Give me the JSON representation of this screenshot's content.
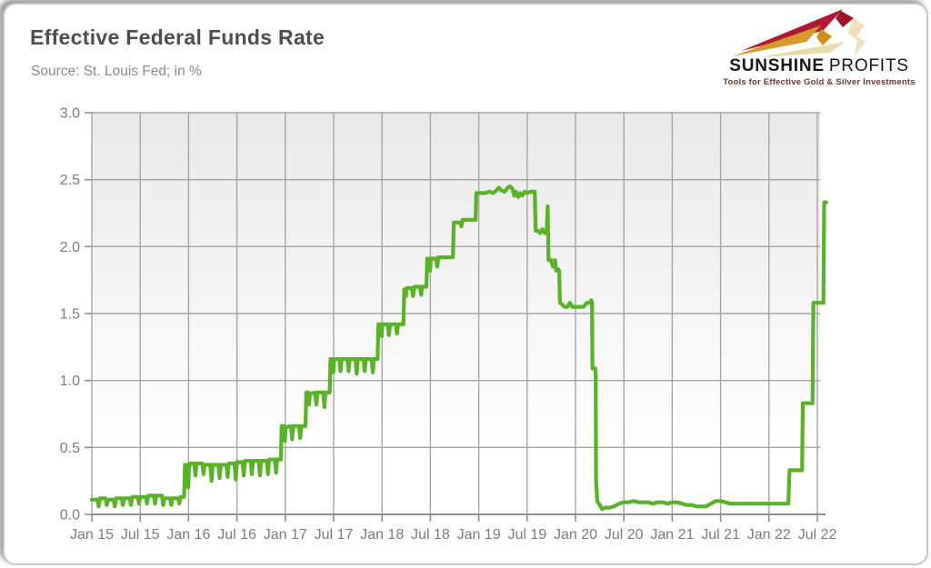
{
  "header": {
    "title": "Effective Federal Funds Rate",
    "subtitle": "Source: St. Louis Fed; in %"
  },
  "logo": {
    "name_primary": "SUNSHINE",
    "name_secondary": "PROFITS",
    "tagline": "Tools for Effective Gold & Silver Investments",
    "colors": {
      "crimson": "#b01931",
      "gold": "#d79a28",
      "pale": "#e9d9ab",
      "text": "#171717",
      "tagline": "#693a33"
    }
  },
  "chart_data": {
    "type": "line",
    "title": "Effective Federal Funds Rate",
    "source_note": "Source: St. Louis Fed; in %",
    "series_name": "Effective Federal Funds Rate (%)",
    "line_color": "#5ab229",
    "grid_color": "#a5a5a5",
    "axis_color": "#8f8f8f",
    "tick_label_color": "#7c7c7c",
    "plot_bg_top": "#e9e9e9",
    "plot_bg_bottom": "#ffffff",
    "grid": true,
    "legend": false,
    "ylim": [
      0.0,
      3.0
    ],
    "y_tick_values": [
      0.0,
      0.5,
      1.0,
      1.5,
      2.0,
      2.5,
      3.0
    ],
    "y_tick_labels": [
      "0.0",
      "0.5",
      "1.0",
      "1.5",
      "2.0",
      "2.5",
      "3.0"
    ],
    "x_tick_labels": [
      "Jan 15",
      "Jul 15",
      "Jan 16",
      "Jul 16",
      "Jan 17",
      "Jul 17",
      "Jan 18",
      "Jul 18",
      "Jan 19",
      "Jul 19",
      "Jan 20",
      "Jul 20",
      "Jan 21",
      "Jul 21",
      "Jan 22",
      "Jul 22"
    ],
    "x_unit": "months since Jan 2015",
    "x_range_months": [
      0,
      91.1
    ],
    "points": [
      [
        0.0,
        0.11
      ],
      [
        0.7,
        0.11
      ],
      [
        0.85,
        0.06
      ],
      [
        1.0,
        0.12
      ],
      [
        1.7,
        0.12
      ],
      [
        1.85,
        0.07
      ],
      [
        2.0,
        0.11
      ],
      [
        2.7,
        0.11
      ],
      [
        2.85,
        0.06
      ],
      [
        3.0,
        0.12
      ],
      [
        3.7,
        0.12
      ],
      [
        3.85,
        0.07
      ],
      [
        4.0,
        0.12
      ],
      [
        4.7,
        0.12
      ],
      [
        4.85,
        0.07
      ],
      [
        5.0,
        0.13
      ],
      [
        5.7,
        0.13
      ],
      [
        5.85,
        0.08
      ],
      [
        6.0,
        0.13
      ],
      [
        6.7,
        0.13
      ],
      [
        6.85,
        0.08
      ],
      [
        7.0,
        0.14
      ],
      [
        7.7,
        0.14
      ],
      [
        7.85,
        0.08
      ],
      [
        8.0,
        0.14
      ],
      [
        8.7,
        0.14
      ],
      [
        8.85,
        0.07
      ],
      [
        9.0,
        0.12
      ],
      [
        9.7,
        0.12
      ],
      [
        9.85,
        0.07
      ],
      [
        10.0,
        0.12
      ],
      [
        10.7,
        0.12
      ],
      [
        10.85,
        0.08
      ],
      [
        11.0,
        0.13
      ],
      [
        11.45,
        0.13
      ],
      [
        11.55,
        0.37
      ],
      [
        11.85,
        0.37
      ],
      [
        11.95,
        0.2
      ],
      [
        12.05,
        0.34
      ],
      [
        12.2,
        0.38
      ],
      [
        12.7,
        0.38
      ],
      [
        12.85,
        0.29
      ],
      [
        13.0,
        0.38
      ],
      [
        13.7,
        0.38
      ],
      [
        13.85,
        0.3
      ],
      [
        14.0,
        0.37
      ],
      [
        14.7,
        0.37
      ],
      [
        14.85,
        0.25
      ],
      [
        15.0,
        0.37
      ],
      [
        15.7,
        0.37
      ],
      [
        15.85,
        0.27
      ],
      [
        16.0,
        0.37
      ],
      [
        16.7,
        0.37
      ],
      [
        16.85,
        0.28
      ],
      [
        17.0,
        0.38
      ],
      [
        17.7,
        0.38
      ],
      [
        17.85,
        0.26
      ],
      [
        18.0,
        0.39
      ],
      [
        18.7,
        0.39
      ],
      [
        18.85,
        0.29
      ],
      [
        19.0,
        0.4
      ],
      [
        19.7,
        0.4
      ],
      [
        19.85,
        0.3
      ],
      [
        20.0,
        0.4
      ],
      [
        20.7,
        0.4
      ],
      [
        20.85,
        0.29
      ],
      [
        21.0,
        0.4
      ],
      [
        21.7,
        0.4
      ],
      [
        21.85,
        0.3
      ],
      [
        22.0,
        0.41
      ],
      [
        22.7,
        0.41
      ],
      [
        22.85,
        0.31
      ],
      [
        23.0,
        0.41
      ],
      [
        23.45,
        0.41
      ],
      [
        23.55,
        0.66
      ],
      [
        23.85,
        0.66
      ],
      [
        23.95,
        0.55
      ],
      [
        24.05,
        0.65
      ],
      [
        24.7,
        0.66
      ],
      [
        24.85,
        0.56
      ],
      [
        25.0,
        0.66
      ],
      [
        25.7,
        0.66
      ],
      [
        25.85,
        0.57
      ],
      [
        26.0,
        0.66
      ],
      [
        26.5,
        0.66
      ],
      [
        26.6,
        0.91
      ],
      [
        26.9,
        0.91
      ],
      [
        26.95,
        0.82
      ],
      [
        27.05,
        0.9
      ],
      [
        27.7,
        0.91
      ],
      [
        27.85,
        0.82
      ],
      [
        28.0,
        0.91
      ],
      [
        28.7,
        0.91
      ],
      [
        28.85,
        0.8
      ],
      [
        29.0,
        0.91
      ],
      [
        29.5,
        0.91
      ],
      [
        29.6,
        1.16
      ],
      [
        29.85,
        1.16
      ],
      [
        29.95,
        1.06
      ],
      [
        30.05,
        1.16
      ],
      [
        30.7,
        1.16
      ],
      [
        30.85,
        1.07
      ],
      [
        31.0,
        1.16
      ],
      [
        31.7,
        1.16
      ],
      [
        31.85,
        1.07
      ],
      [
        32.0,
        1.16
      ],
      [
        32.7,
        1.16
      ],
      [
        32.85,
        1.05
      ],
      [
        33.0,
        1.16
      ],
      [
        33.7,
        1.16
      ],
      [
        33.85,
        1.07
      ],
      [
        34.0,
        1.16
      ],
      [
        34.7,
        1.16
      ],
      [
        34.85,
        1.06
      ],
      [
        35.0,
        1.16
      ],
      [
        35.45,
        1.16
      ],
      [
        35.55,
        1.42
      ],
      [
        35.85,
        1.42
      ],
      [
        35.95,
        1.33
      ],
      [
        36.05,
        1.42
      ],
      [
        36.7,
        1.42
      ],
      [
        36.85,
        1.34
      ],
      [
        37.0,
        1.42
      ],
      [
        37.7,
        1.42
      ],
      [
        37.85,
        1.35
      ],
      [
        38.0,
        1.42
      ],
      [
        38.65,
        1.42
      ],
      [
        38.75,
        1.68
      ],
      [
        38.9,
        1.68
      ],
      [
        38.97,
        1.63
      ],
      [
        39.05,
        1.69
      ],
      [
        39.7,
        1.69
      ],
      [
        39.85,
        1.63
      ],
      [
        40.0,
        1.7
      ],
      [
        40.7,
        1.7
      ],
      [
        40.85,
        1.64
      ],
      [
        41.0,
        1.7
      ],
      [
        41.5,
        1.7
      ],
      [
        41.6,
        1.91
      ],
      [
        41.85,
        1.91
      ],
      [
        41.95,
        1.82
      ],
      [
        42.05,
        1.91
      ],
      [
        42.7,
        1.91
      ],
      [
        42.85,
        1.85
      ],
      [
        43.0,
        1.92
      ],
      [
        43.7,
        1.92
      ],
      [
        44.0,
        1.92
      ],
      [
        44.8,
        1.92
      ],
      [
        44.9,
        2.18
      ],
      [
        45.3,
        2.18
      ],
      [
        45.7,
        2.18
      ],
      [
        45.85,
        2.15
      ],
      [
        46.0,
        2.2
      ],
      [
        46.7,
        2.2
      ],
      [
        47.0,
        2.2
      ],
      [
        47.6,
        2.2
      ],
      [
        47.7,
        2.4
      ],
      [
        48.3,
        2.4
      ],
      [
        48.8,
        2.4
      ],
      [
        49.3,
        2.41
      ],
      [
        49.8,
        2.4
      ],
      [
        50.2,
        2.42
      ],
      [
        50.5,
        2.44
      ],
      [
        50.8,
        2.42
      ],
      [
        51.2,
        2.41
      ],
      [
        51.6,
        2.44
      ],
      [
        51.9,
        2.45
      ],
      [
        52.2,
        2.43
      ],
      [
        52.4,
        2.38
      ],
      [
        52.6,
        2.41
      ],
      [
        52.9,
        2.37
      ],
      [
        53.1,
        2.4
      ],
      [
        53.4,
        2.38
      ],
      [
        53.7,
        2.41
      ],
      [
        54.0,
        2.4
      ],
      [
        54.5,
        2.41
      ],
      [
        54.95,
        2.41
      ],
      [
        55.05,
        2.12
      ],
      [
        55.3,
        2.12
      ],
      [
        55.6,
        2.1
      ],
      [
        55.9,
        2.13
      ],
      [
        56.2,
        2.1
      ],
      [
        56.45,
        2.13
      ],
      [
        56.55,
        2.3
      ],
      [
        56.65,
        1.9
      ],
      [
        57.0,
        1.9
      ],
      [
        57.2,
        1.85
      ],
      [
        57.45,
        1.9
      ],
      [
        57.6,
        1.82
      ],
      [
        57.85,
        1.83
      ],
      [
        57.97,
        1.82
      ],
      [
        58.07,
        1.58
      ],
      [
        58.3,
        1.57
      ],
      [
        58.6,
        1.55
      ],
      [
        59.0,
        1.55
      ],
      [
        59.3,
        1.58
      ],
      [
        59.6,
        1.55
      ],
      [
        60.0,
        1.55
      ],
      [
        60.5,
        1.55
      ],
      [
        61.0,
        1.55
      ],
      [
        61.4,
        1.58
      ],
      [
        61.8,
        1.58
      ],
      [
        61.95,
        1.6
      ],
      [
        62.05,
        1.58
      ],
      [
        62.1,
        1.09
      ],
      [
        62.45,
        1.09
      ],
      [
        62.5,
        1.04
      ],
      [
        62.55,
        0.25
      ],
      [
        62.7,
        0.1
      ],
      [
        63.0,
        0.07
      ],
      [
        63.3,
        0.04
      ],
      [
        63.7,
        0.05
      ],
      [
        64.2,
        0.05
      ],
      [
        64.8,
        0.06
      ],
      [
        65.4,
        0.08
      ],
      [
        66.0,
        0.09
      ],
      [
        66.6,
        0.09
      ],
      [
        67.2,
        0.1
      ],
      [
        67.8,
        0.09
      ],
      [
        68.4,
        0.09
      ],
      [
        69.0,
        0.09
      ],
      [
        69.6,
        0.08
      ],
      [
        70.2,
        0.09
      ],
      [
        70.8,
        0.09
      ],
      [
        71.4,
        0.08
      ],
      [
        72.0,
        0.09
      ],
      [
        72.6,
        0.09
      ],
      [
        73.2,
        0.08
      ],
      [
        73.8,
        0.07
      ],
      [
        74.4,
        0.07
      ],
      [
        75.0,
        0.06
      ],
      [
        75.6,
        0.06
      ],
      [
        76.2,
        0.06
      ],
      [
        76.8,
        0.08
      ],
      [
        77.4,
        0.1
      ],
      [
        78.0,
        0.1
      ],
      [
        78.6,
        0.09
      ],
      [
        79.2,
        0.08
      ],
      [
        79.8,
        0.08
      ],
      [
        80.4,
        0.08
      ],
      [
        81.0,
        0.08
      ],
      [
        81.6,
        0.08
      ],
      [
        82.2,
        0.08
      ],
      [
        82.8,
        0.08
      ],
      [
        83.4,
        0.08
      ],
      [
        84.0,
        0.08
      ],
      [
        84.6,
        0.08
      ],
      [
        85.2,
        0.08
      ],
      [
        85.8,
        0.08
      ],
      [
        86.4,
        0.08
      ],
      [
        86.55,
        0.33
      ],
      [
        87.0,
        0.33
      ],
      [
        87.6,
        0.33
      ],
      [
        88.1,
        0.33
      ],
      [
        88.2,
        0.83
      ],
      [
        88.7,
        0.83
      ],
      [
        89.4,
        0.83
      ],
      [
        89.5,
        1.58
      ],
      [
        90.0,
        1.58
      ],
      [
        90.75,
        1.58
      ],
      [
        90.85,
        2.33
      ],
      [
        91.1,
        2.33
      ]
    ]
  }
}
